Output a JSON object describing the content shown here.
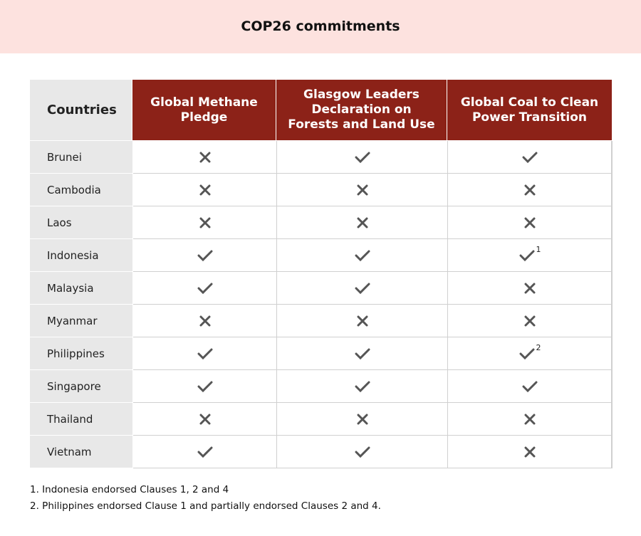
{
  "header": {
    "title": "COP26 commitments"
  },
  "table": {
    "columns": [
      "Countries",
      "Global Methane Pledge",
      "Glasgow Leaders Declaration on Forests and Land Use",
      "Global Coal to Clean Power Transition"
    ],
    "rows": [
      {
        "country": "Brunei",
        "cells": [
          false,
          true,
          true
        ]
      },
      {
        "country": "Cambodia",
        "cells": [
          false,
          false,
          false
        ]
      },
      {
        "country": "Laos",
        "cells": [
          false,
          false,
          false
        ]
      },
      {
        "country": "Indonesia",
        "cells": [
          true,
          true,
          {
            "value": true,
            "note": 1
          }
        ]
      },
      {
        "country": "Malaysia",
        "cells": [
          true,
          true,
          false
        ]
      },
      {
        "country": "Myanmar",
        "cells": [
          false,
          false,
          false
        ]
      },
      {
        "country": "Philippines",
        "cells": [
          true,
          true,
          {
            "value": true,
            "note": 2
          }
        ]
      },
      {
        "country": "Singapore",
        "cells": [
          true,
          true,
          true
        ]
      },
      {
        "country": "Thailand",
        "cells": [
          false,
          false,
          false
        ]
      },
      {
        "country": "Vietnam",
        "cells": [
          true,
          true,
          false
        ]
      }
    ]
  },
  "footnotes": [
    "1. Indonesia endorsed Clauses 1, 2 and 4",
    "2. Philippines endorsed Clause 1 and partially endorsed Clauses 2 and 4."
  ]
}
